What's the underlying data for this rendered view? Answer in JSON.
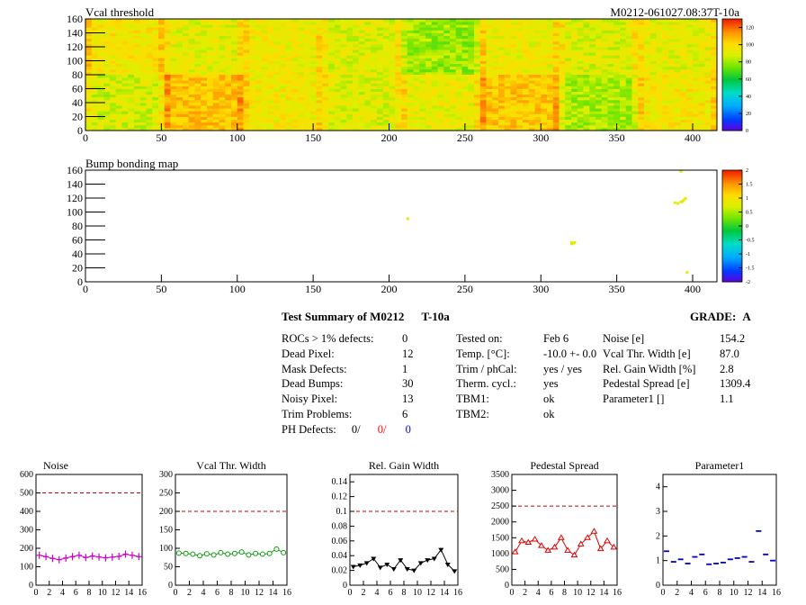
{
  "header": {
    "top_title": "Vcal threshold",
    "module_id": "M0212-061027.08:37T-10a",
    "bump_title": "Bump bonding map"
  },
  "colors": {
    "noise_series": "#cc00cc",
    "vcal_series": "#119911",
    "gain_series": "#000000",
    "pedestal_series": "#dd0000",
    "param_series": "#0000cc",
    "limit_line": "#cc0000",
    "red_text": "#ff0000",
    "blue_text": "#0000ff"
  },
  "summary": {
    "title": "Test Summary of M0212",
    "test_name": "T-10a",
    "grade_label": "GRADE:",
    "grade": "A",
    "defects": [
      {
        "label": "ROCs > 1% defects:",
        "value": "0"
      },
      {
        "label": "Dead Pixel:",
        "value": "12"
      },
      {
        "label": "Mask Defects:",
        "value": "1"
      },
      {
        "label": "Dead Bumps:",
        "value": "30"
      },
      {
        "label": "Noisy Pixel:",
        "value": "13"
      },
      {
        "label": "Trim Problems:",
        "value": "6"
      }
    ],
    "ph_defects": {
      "label": "PH Defects:",
      "v1": "0/",
      "v2": "0/",
      "v3": "0"
    },
    "conditions": [
      {
        "label": "Tested on:",
        "value": "Feb 6"
      },
      {
        "label": "Temp. [°C]:",
        "value": "-10.0 +- 0.0"
      },
      {
        "label": "Trim / phCal:",
        "value": "yes / yes"
      },
      {
        "label": "Therm. cycl.:",
        "value": "yes"
      },
      {
        "label": "TBM1:",
        "value": "ok"
      },
      {
        "label": "TBM2:",
        "value": "ok"
      }
    ],
    "results": [
      {
        "label": "Noise [e]",
        "value": "154.2"
      },
      {
        "label": "Vcal Thr. Width [e]",
        "value": "87.0"
      },
      {
        "label": "Rel. Gain Width [%]",
        "value": "2.8"
      },
      {
        "label": "Pedestal Spread [e]",
        "value": "1309.4"
      },
      {
        "label": "Parameter1 []",
        "value": "1.1"
      }
    ]
  },
  "chart_data": [
    {
      "type": "heatmap",
      "title": "Vcal threshold",
      "xlim": [
        0,
        416
      ],
      "ylim": [
        0,
        160
      ],
      "xticks": [
        0,
        50,
        100,
        150,
        200,
        250,
        300,
        350,
        400
      ],
      "yticks": [
        0,
        20,
        40,
        60,
        80,
        100,
        120,
        140,
        160
      ],
      "zlim": [
        0,
        130
      ],
      "zticks": [
        0,
        20,
        40,
        60,
        80,
        100,
        120
      ],
      "rocs_top_mean": [
        96,
        92,
        94,
        90,
        80,
        94,
        90,
        92
      ],
      "rocs_bottom_mean": [
        88,
        105,
        95,
        90,
        93,
        104,
        82,
        96
      ],
      "colorbar": "rainbow"
    },
    {
      "type": "heatmap",
      "title": "Bump bonding map",
      "xlim": [
        0,
        416
      ],
      "ylim": [
        0,
        160
      ],
      "xticks": [
        0,
        50,
        100,
        150,
        200,
        250,
        300,
        350,
        400
      ],
      "yticks": [
        0,
        20,
        40,
        60,
        80,
        100,
        120,
        140,
        160
      ],
      "zlim": [
        -2,
        2
      ],
      "zticks": [
        -2,
        -1.5,
        -1,
        -0.5,
        0,
        0.5,
        1,
        1.5,
        2
      ],
      "points": [
        {
          "x": 212,
          "y": 91
        },
        {
          "x": 320,
          "y": 57
        },
        {
          "x": 321,
          "y": 56
        },
        {
          "x": 322,
          "y": 57
        },
        {
          "x": 320,
          "y": 55
        },
        {
          "x": 388,
          "y": 114
        },
        {
          "x": 390,
          "y": 113
        },
        {
          "x": 392,
          "y": 115
        },
        {
          "x": 394,
          "y": 118
        },
        {
          "x": 395,
          "y": 120
        },
        {
          "x": 393,
          "y": 116
        },
        {
          "x": 392,
          "y": 159
        },
        {
          "x": 396,
          "y": 14
        }
      ],
      "point_value": 0.8
    },
    {
      "type": "scatter",
      "title": "Noise",
      "x": [
        0,
        1,
        2,
        3,
        4,
        5,
        6,
        7,
        8,
        9,
        10,
        11,
        12,
        13,
        14,
        15
      ],
      "values": [
        162,
        155,
        145,
        138,
        147,
        155,
        162,
        150,
        158,
        153,
        148,
        152,
        156,
        168,
        162,
        155
      ],
      "xlim": [
        0,
        16
      ],
      "ylim": [
        0,
        600
      ],
      "xticks": [
        0,
        2,
        4,
        6,
        8,
        10,
        12,
        14,
        16
      ],
      "yticks": [
        0,
        100,
        200,
        300,
        400,
        500,
        600
      ],
      "limit": 500,
      "marker": "plus"
    },
    {
      "type": "scatter",
      "title": "Vcal Thr. Width",
      "x": [
        0,
        1,
        2,
        3,
        4,
        5,
        6,
        7,
        8,
        9,
        10,
        11,
        12,
        13,
        14,
        15
      ],
      "values": [
        87,
        86,
        84,
        80,
        85,
        82,
        88,
        84,
        86,
        90,
        82,
        86,
        84,
        86,
        98,
        88
      ],
      "xlim": [
        0,
        16
      ],
      "ylim": [
        0,
        300
      ],
      "xticks": [
        0,
        2,
        4,
        6,
        8,
        10,
        12,
        14,
        16
      ],
      "yticks": [
        0,
        50,
        100,
        150,
        200,
        250,
        300
      ],
      "limit": 200,
      "marker": "circle"
    },
    {
      "type": "scatter",
      "title": "Rel. Gain Width",
      "x": [
        0,
        1,
        2,
        3,
        4,
        5,
        6,
        7,
        8,
        9,
        10,
        11,
        12,
        13,
        14,
        15
      ],
      "values": [
        0.025,
        0.027,
        0.03,
        0.036,
        0.024,
        0.028,
        0.022,
        0.034,
        0.022,
        0.02,
        0.03,
        0.034,
        0.036,
        0.048,
        0.028,
        0.019
      ],
      "xlim": [
        0,
        16
      ],
      "ylim": [
        0,
        0.15
      ],
      "xticks": [
        0,
        2,
        4,
        6,
        8,
        10,
        12,
        14,
        16
      ],
      "yticks": [
        0,
        0.02,
        0.04,
        0.06,
        0.08,
        0.1,
        0.12,
        0.14
      ],
      "limit": 0.1,
      "marker": "triangle"
    },
    {
      "type": "scatter",
      "title": "Pedestal Spread",
      "x": [
        0,
        1,
        2,
        3,
        4,
        5,
        6,
        7,
        8,
        9,
        10,
        11,
        12,
        13,
        14,
        15
      ],
      "values": [
        1050,
        1400,
        1350,
        1450,
        1250,
        1100,
        1200,
        1500,
        1100,
        950,
        1300,
        1500,
        1700,
        1150,
        1400,
        1200
      ],
      "xlim": [
        0,
        16
      ],
      "ylim": [
        0,
        3500
      ],
      "xticks": [
        0,
        2,
        4,
        6,
        8,
        10,
        12,
        14,
        16
      ],
      "yticks": [
        0,
        500,
        1000,
        1500,
        2000,
        2500,
        3000,
        3500
      ],
      "limit": 2500,
      "marker": "triangle-open"
    },
    {
      "type": "scatter",
      "title": "Parameter1",
      "x": [
        0,
        1,
        2,
        3,
        4,
        5,
        6,
        7,
        8,
        9,
        10,
        11,
        12,
        13,
        14,
        15
      ],
      "values": [
        1.38,
        0.95,
        1.05,
        0.88,
        1.15,
        1.25,
        0.85,
        0.88,
        0.92,
        1.05,
        1.1,
        1.15,
        0.95,
        2.2,
        1.25,
        1.0
      ],
      "xlim": [
        0,
        16
      ],
      "ylim": [
        0,
        4.5
      ],
      "xticks": [
        0,
        2,
        4,
        6,
        8,
        10,
        12,
        14,
        16
      ],
      "yticks": [
        0,
        1,
        2,
        3,
        4
      ],
      "marker": "dash"
    }
  ]
}
